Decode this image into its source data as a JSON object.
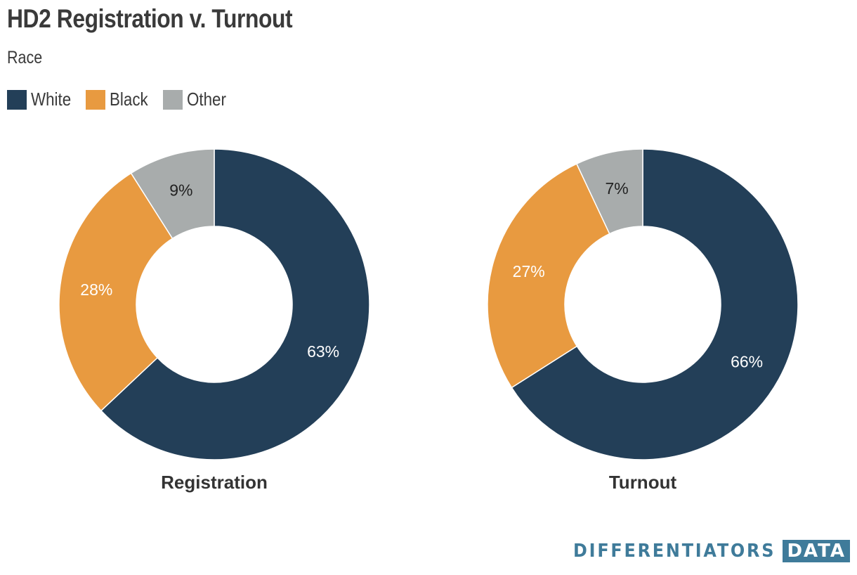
{
  "title": "HD2 Registration v. Turnout",
  "subtitle": "Race",
  "colors": {
    "White": "#233f58",
    "Black": "#e89a40",
    "Other": "#a8acac"
  },
  "legend": [
    {
      "label": "White",
      "color": "#233f58"
    },
    {
      "label": "Black",
      "color": "#e89a40"
    },
    {
      "label": "Other",
      "color": "#a8acac"
    }
  ],
  "chart_data": [
    {
      "type": "pie",
      "style": "donut",
      "title": "Registration",
      "categories": [
        "White",
        "Black",
        "Other"
      ],
      "values": [
        63,
        28,
        9
      ],
      "labels": [
        "63%",
        "28%",
        "9%"
      ]
    },
    {
      "type": "pie",
      "style": "donut",
      "title": "Turnout",
      "categories": [
        "White",
        "Black",
        "Other"
      ],
      "values": [
        66,
        27,
        7
      ],
      "labels": [
        "66%",
        "27%",
        "7%"
      ]
    }
  ],
  "brand": {
    "name": "DIFFERENTIATORS",
    "badge": "DATA"
  }
}
